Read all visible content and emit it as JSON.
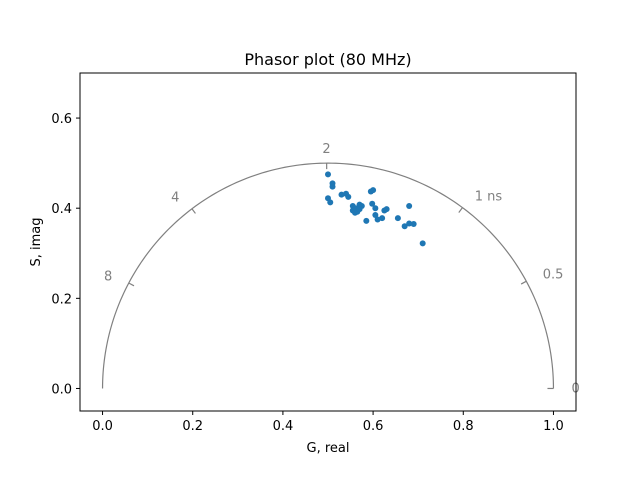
{
  "chart_data": {
    "type": "scatter",
    "title": "Phasor plot (80 MHz)",
    "xlabel": "G, real",
    "ylabel": "S, imag",
    "xlim": [
      -0.05,
      1.05
    ],
    "ylim": [
      -0.05,
      0.7
    ],
    "xticks": [
      {
        "value": 0.0,
        "label": "0.0"
      },
      {
        "value": 0.2,
        "label": "0.2"
      },
      {
        "value": 0.4,
        "label": "0.4"
      },
      {
        "value": 0.6,
        "label": "0.6"
      },
      {
        "value": 0.8,
        "label": "0.8"
      },
      {
        "value": 1.0,
        "label": "1.0"
      }
    ],
    "yticks": [
      {
        "value": 0.0,
        "label": "0.0"
      },
      {
        "value": 0.2,
        "label": "0.2"
      },
      {
        "value": 0.4,
        "label": "0.4"
      },
      {
        "value": 0.6,
        "label": "0.6"
      }
    ],
    "grid": false,
    "colors": {
      "points": "#1f77b4",
      "semicircle": "#808080",
      "axes": "#000000"
    },
    "semicircle": {
      "center": [
        0.5,
        0.0
      ],
      "radius": 0.5,
      "lifetime_labels": [
        {
          "g": 1.0,
          "s": 0.0,
          "label": "0"
        },
        {
          "g": 0.94,
          "s": 0.238,
          "label": "0.5"
        },
        {
          "g": 0.798,
          "s": 0.401,
          "label": "1 ns"
        },
        {
          "g": 0.497,
          "s": 0.5,
          "label": "2"
        },
        {
          "g": 0.198,
          "s": 0.399,
          "label": "4"
        },
        {
          "g": 0.058,
          "s": 0.234,
          "label": "8"
        }
      ]
    },
    "series": [
      {
        "x": [
          0.5,
          0.51,
          0.51,
          0.5,
          0.505,
          0.53,
          0.54,
          0.545,
          0.555,
          0.56,
          0.565,
          0.57,
          0.575,
          0.585,
          0.595,
          0.598,
          0.6,
          0.605,
          0.605,
          0.61,
          0.62,
          0.625,
          0.63,
          0.655,
          0.67,
          0.68,
          0.68,
          0.69,
          0.71,
          0.555,
          0.565,
          0.56,
          0.57
        ],
        "y": [
          0.475,
          0.455,
          0.448,
          0.422,
          0.413,
          0.43,
          0.432,
          0.425,
          0.395,
          0.39,
          0.4,
          0.408,
          0.405,
          0.372,
          0.437,
          0.41,
          0.44,
          0.4,
          0.385,
          0.375,
          0.378,
          0.395,
          0.398,
          0.378,
          0.36,
          0.366,
          0.405,
          0.365,
          0.322,
          0.405,
          0.392,
          0.4,
          0.398
        ]
      }
    ]
  }
}
